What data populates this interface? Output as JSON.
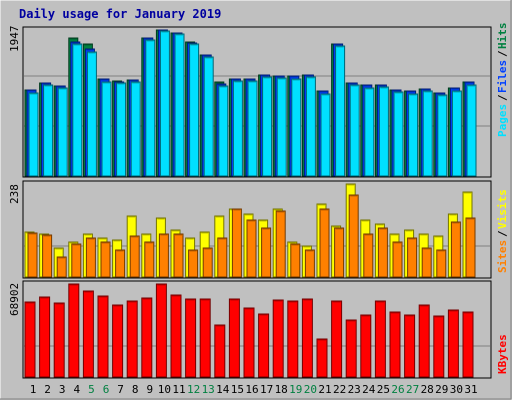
{
  "chart_data": [
    {
      "type": "bar",
      "title": "Daily usage for January 2019",
      "ymax_label": "1947",
      "categories": [
        "1",
        "2",
        "3",
        "4",
        "5",
        "6",
        "7",
        "8",
        "9",
        "10",
        "11",
        "12",
        "13",
        "14",
        "15",
        "16",
        "17",
        "18",
        "19",
        "20",
        "21",
        "22",
        "23",
        "24",
        "25",
        "26",
        "27",
        "28",
        "29",
        "30",
        "31"
      ],
      "weekend_days": [
        "5",
        "6",
        "12",
        "13",
        "19",
        "20",
        "26",
        "27"
      ],
      "series_labels": [
        "Pages",
        "Files",
        "Hits"
      ],
      "series": [
        {
          "name": "Hits",
          "color": "#008040",
          "values": [
            1150,
            1240,
            1200,
            1846,
            1760,
            1290,
            1270,
            1280,
            1846,
            1947,
            1910,
            1790,
            1620,
            1250,
            1300,
            1300,
            1350,
            1340,
            1330,
            1350,
            1130,
            1760,
            1240,
            1210,
            1220,
            1150,
            1130,
            1160,
            1110,
            1170,
            1250
          ]
        },
        {
          "name": "Files",
          "color": "#0040ff",
          "values": [
            1150,
            1240,
            1200,
            1790,
            1700,
            1290,
            1260,
            1280,
            1846,
            1947,
            1910,
            1780,
            1620,
            1230,
            1300,
            1300,
            1350,
            1340,
            1330,
            1350,
            1130,
            1760,
            1240,
            1210,
            1220,
            1150,
            1130,
            1160,
            1110,
            1170,
            1250
          ]
        },
        {
          "name": "Pages",
          "color": "#00e0ff",
          "values": [
            1110,
            1210,
            1180,
            1760,
            1660,
            1260,
            1240,
            1260,
            1820,
            1930,
            1890,
            1760,
            1590,
            1200,
            1270,
            1270,
            1320,
            1310,
            1300,
            1320,
            1100,
            1730,
            1210,
            1180,
            1190,
            1120,
            1100,
            1130,
            1080,
            1140,
            1220
          ]
        }
      ]
    },
    {
      "type": "bar",
      "ymax_label": "238",
      "series_labels": [
        "Sites",
        "Visits"
      ],
      "series": [
        {
          "name": "Visits",
          "color": "#ffff00",
          "values": [
            115,
            110,
            75,
            90,
            110,
            100,
            95,
            155,
            110,
            150,
            120,
            100,
            115,
            155,
            175,
            160,
            145,
            175,
            90,
            80,
            188,
            130,
            238,
            145,
            135,
            110,
            120,
            110,
            105,
            160,
            218
          ]
        },
        {
          "name": "Sites",
          "color": "#ff8000",
          "values": [
            112,
            108,
            50,
            85,
            100,
            90,
            68,
            105,
            90,
            110,
            110,
            70,
            75,
            100,
            175,
            145,
            125,
            168,
            85,
            68,
            175,
            125,
            210,
            110,
            125,
            90,
            100,
            75,
            70,
            140,
            150
          ]
        }
      ]
    },
    {
      "type": "bar",
      "ymax_label": "68902",
      "series_labels": [
        "KBytes"
      ],
      "series": [
        {
          "name": "KBytes",
          "color": "#ff0000",
          "values": [
            55600,
            59500,
            54600,
            68902,
            63700,
            59800,
            53600,
            56200,
            58700,
            68902,
            60700,
            57600,
            58100,
            38700,
            58000,
            51000,
            47000,
            56700,
            56500,
            57600,
            28100,
            56000,
            42600,
            46300,
            56200,
            48300,
            46300,
            53400,
            44900,
            49600,
            48400
          ]
        }
      ]
    }
  ]
}
